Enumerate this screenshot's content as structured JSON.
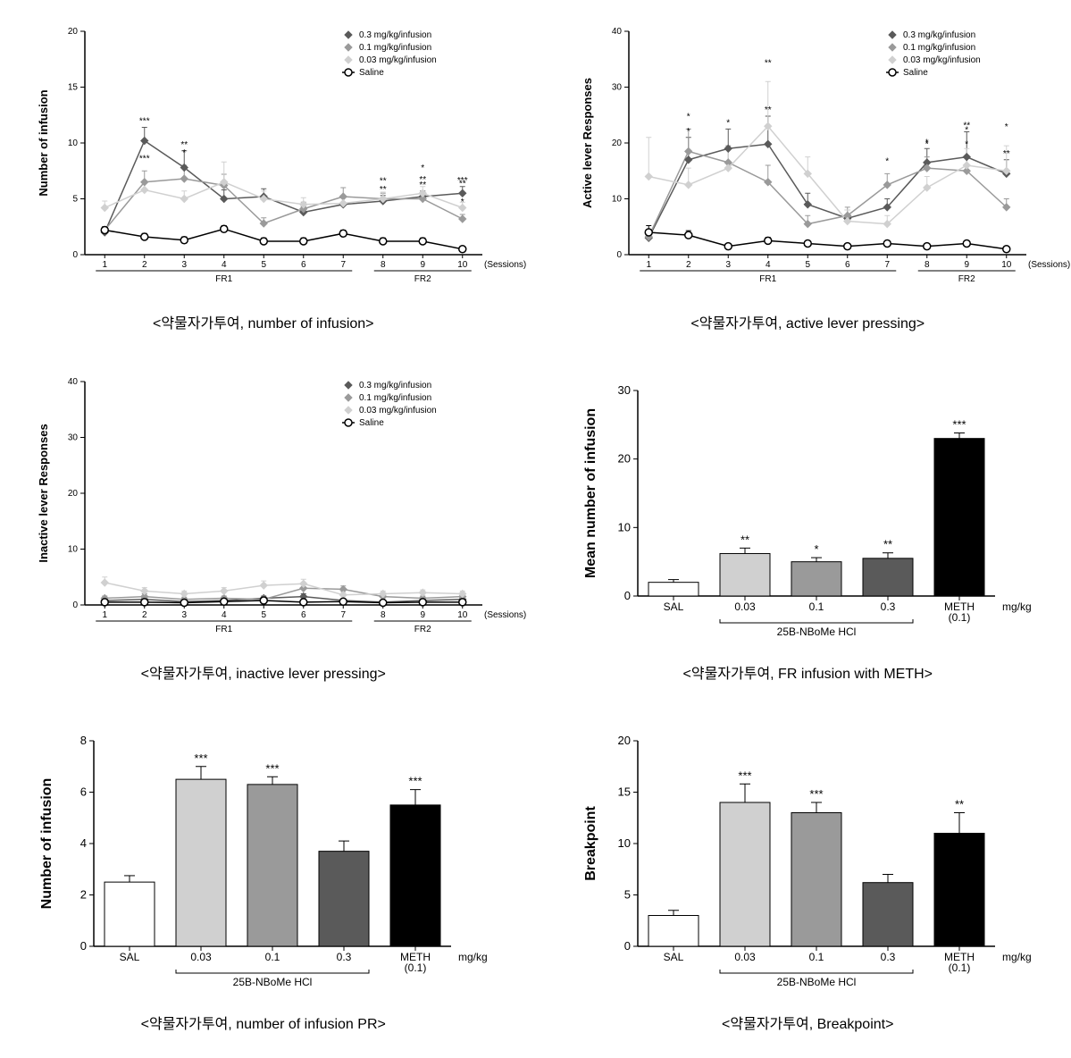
{
  "colors": {
    "dark": "#5a5a5a",
    "mid": "#9a9a9a",
    "light": "#d0d0d0",
    "saline_stroke": "#000000",
    "saline_fill": "#ffffff",
    "bg": "#ffffff",
    "black": "#000000"
  },
  "line_legends": {
    "items": [
      {
        "label": "0.3 mg/kg/infusion",
        "color": "#5a5a5a",
        "marker": "diamond"
      },
      {
        "label": "0.1 mg/kg/infusion",
        "color": "#9a9a9a",
        "marker": "diamond"
      },
      {
        "label": "0.03 mg/kg/infusion",
        "color": "#d0d0d0",
        "marker": "diamond"
      },
      {
        "label": "Saline",
        "color": "#000000",
        "marker": "open-circle"
      }
    ]
  },
  "charts": [
    {
      "id": "c1",
      "type": "line",
      "caption": "<약물자가투여, number of infusion>",
      "ylabel": "Number of infusion",
      "ylim": [
        0,
        20
      ],
      "ytick_step": 5,
      "x_categories": [
        1,
        2,
        3,
        4,
        5,
        6,
        7,
        8,
        9,
        10
      ],
      "x_groups": [
        {
          "label": "FR1",
          "from": 1,
          "to": 7
        },
        {
          "label": "FR2",
          "from": 8,
          "to": 10
        }
      ],
      "x_suffix_label": "(Sessions)",
      "series": [
        {
          "key": "0.3",
          "color": "#5a5a5a",
          "marker": "diamond",
          "y": [
            2.0,
            10.2,
            7.8,
            5.0,
            5.2,
            3.8,
            4.5,
            4.8,
            5.2,
            5.5
          ],
          "err": [
            0.4,
            1.2,
            1.5,
            0.8,
            0.7,
            0.5,
            0.6,
            0.5,
            0.5,
            0.6
          ],
          "sig": [
            "",
            "***",
            "**",
            "",
            "",
            "",
            "",
            "**",
            "**",
            "***"
          ]
        },
        {
          "key": "0.1",
          "color": "#9a9a9a",
          "marker": "diamond",
          "y": [
            2.2,
            6.5,
            6.8,
            6.2,
            2.8,
            4.1,
            5.2,
            5.0,
            5.0,
            3.2
          ],
          "err": [
            0.3,
            1.0,
            1.2,
            1.0,
            0.5,
            0.6,
            0.8,
            0.5,
            0.6,
            0.4
          ],
          "sig": [
            "",
            "***",
            "*",
            "",
            "",
            "",
            "",
            "**",
            "**",
            "*"
          ]
        },
        {
          "key": "0.03",
          "color": "#d0d0d0",
          "marker": "diamond",
          "y": [
            4.2,
            5.8,
            5.0,
            6.5,
            5.0,
            4.5,
            4.6,
            5.0,
            5.5,
            4.2
          ],
          "err": [
            0.6,
            0.8,
            0.7,
            1.8,
            0.7,
            0.6,
            0.5,
            0.6,
            0.6,
            0.5
          ],
          "sig": [
            "",
            "",
            "",
            "",
            "",
            "",
            "",
            "",
            "*",
            "**"
          ]
        },
        {
          "key": "Saline",
          "color": "#000000",
          "marker": "open-circle",
          "y": [
            2.2,
            1.6,
            1.3,
            2.3,
            1.2,
            1.2,
            1.9,
            1.2,
            1.2,
            0.5
          ],
          "err": [
            0.3,
            0.3,
            0.3,
            0.3,
            0.3,
            0.3,
            0.3,
            0.3,
            0.3,
            0.2
          ],
          "sig": [
            "",
            "",
            "",
            "",
            "",
            "",
            "",
            "",
            "",
            ""
          ]
        }
      ]
    },
    {
      "id": "c2",
      "type": "line",
      "caption": "<약물자가투여, active lever pressing>",
      "ylabel": "Active lever Responses",
      "ylim": [
        0,
        40
      ],
      "ytick_step": 10,
      "x_categories": [
        1,
        2,
        3,
        4,
        5,
        6,
        7,
        8,
        9,
        10
      ],
      "x_groups": [
        {
          "label": "FR1",
          "from": 1,
          "to": 7
        },
        {
          "label": "FR2",
          "from": 8,
          "to": 10
        }
      ],
      "x_suffix_label": "(Sessions)",
      "series": [
        {
          "key": "0.3",
          "color": "#5a5a5a",
          "marker": "diamond",
          "y": [
            3.0,
            17.0,
            19.0,
            19.8,
            9.0,
            6.5,
            8.5,
            16.5,
            17.5,
            14.5
          ],
          "err": [
            0.8,
            4.0,
            3.5,
            5.0,
            2.0,
            1.5,
            1.5,
            2.5,
            4.5,
            2.5
          ],
          "sig": [
            "",
            "*",
            "*",
            "**",
            "",
            "",
            "",
            "*",
            "**",
            "**"
          ]
        },
        {
          "key": "0.1",
          "color": "#9a9a9a",
          "marker": "diamond",
          "y": [
            3.2,
            18.5,
            16.5,
            13.0,
            5.5,
            7.0,
            12.5,
            15.5,
            15.0,
            8.5
          ],
          "err": [
            0.8,
            4.0,
            3.0,
            3.0,
            1.5,
            1.5,
            2.0,
            2.0,
            2.5,
            1.5
          ],
          "sig": [
            "",
            "*",
            "",
            "",
            "",
            "",
            "*",
            "*",
            "*",
            ""
          ]
        },
        {
          "key": "0.03",
          "color": "#d0d0d0",
          "marker": "diamond",
          "y": [
            14.0,
            12.5,
            15.5,
            23.0,
            14.5,
            6.0,
            5.5,
            12.0,
            16.0,
            15.0
          ],
          "err": [
            7.0,
            3.0,
            3.5,
            8.0,
            3.0,
            2.0,
            1.5,
            2.0,
            3.0,
            4.5
          ],
          "sig": [
            "",
            "",
            "",
            "**",
            "",
            "",
            "",
            "",
            "*",
            "*"
          ]
        },
        {
          "key": "Saline",
          "color": "#000000",
          "marker": "open-circle",
          "y": [
            4.0,
            3.5,
            1.5,
            2.5,
            2.0,
            1.5,
            2.0,
            1.5,
            2.0,
            1.0
          ],
          "err": [
            1.2,
            0.8,
            0.5,
            0.6,
            0.5,
            0.5,
            0.5,
            0.5,
            0.5,
            0.4
          ],
          "sig": [
            "",
            "",
            "",
            "",
            "",
            "",
            "",
            "",
            "",
            ""
          ]
        }
      ]
    },
    {
      "id": "c3",
      "type": "line",
      "caption": "<약물자가투여, inactive lever pressing>",
      "ylabel": "Inactive lever Responses",
      "ylim": [
        0,
        40
      ],
      "ytick_step": 10,
      "x_categories": [
        1,
        2,
        3,
        4,
        5,
        6,
        7,
        8,
        9,
        10
      ],
      "x_groups": [
        {
          "label": "FR1",
          "from": 1,
          "to": 7
        },
        {
          "label": "FR2",
          "from": 8,
          "to": 10
        }
      ],
      "x_suffix_label": "(Sessions)",
      "series": [
        {
          "key": "0.3",
          "color": "#5a5a5a",
          "marker": "diamond",
          "y": [
            0.8,
            1.0,
            0.6,
            0.8,
            1.2,
            1.5,
            0.8,
            0.5,
            0.8,
            1.0
          ],
          "err": [
            0.3,
            0.3,
            0.3,
            0.3,
            0.4,
            0.5,
            0.3,
            0.3,
            0.3,
            0.3
          ],
          "sig": [
            "",
            "",
            "",
            "",
            "",
            "",
            "",
            "",
            "",
            ""
          ]
        },
        {
          "key": "0.1",
          "color": "#9a9a9a",
          "marker": "diamond",
          "y": [
            1.2,
            1.5,
            1.0,
            1.2,
            1.0,
            3.0,
            2.8,
            1.5,
            1.2,
            1.5
          ],
          "err": [
            0.4,
            0.5,
            0.4,
            0.4,
            0.4,
            0.8,
            0.6,
            0.4,
            0.4,
            0.4
          ],
          "sig": [
            "",
            "",
            "",
            "",
            "",
            "",
            "",
            "",
            "",
            ""
          ]
        },
        {
          "key": "0.03",
          "color": "#d0d0d0",
          "marker": "diamond",
          "y": [
            4.0,
            2.5,
            2.0,
            2.5,
            3.5,
            3.8,
            1.8,
            2.0,
            2.2,
            2.0
          ],
          "err": [
            1.0,
            0.6,
            0.5,
            0.6,
            0.8,
            0.8,
            0.5,
            0.5,
            0.5,
            0.5
          ],
          "sig": [
            "",
            "",
            "",
            "",
            "",
            "",
            "",
            "",
            "",
            ""
          ]
        },
        {
          "key": "Saline",
          "color": "#000000",
          "marker": "open-circle",
          "y": [
            0.5,
            0.5,
            0.4,
            0.6,
            0.8,
            0.5,
            0.6,
            0.4,
            0.5,
            0.5
          ],
          "err": [
            0.2,
            0.2,
            0.2,
            0.2,
            0.2,
            0.2,
            0.2,
            0.2,
            0.2,
            0.2
          ],
          "sig": [
            "",
            "",
            "",
            "",
            "",
            "",
            "",
            "",
            "",
            ""
          ]
        }
      ]
    },
    {
      "id": "c4",
      "type": "bar",
      "caption": "<약물자가투여, FR infusion with METH>",
      "ylabel": "Mean number of infusion",
      "ylim": [
        0,
        30
      ],
      "ytick_step": 10,
      "axis_title_fontsize": 16,
      "x_categories": [
        "SAL",
        "0.03",
        "0.1",
        "0.3",
        "METH\n(0.1)"
      ],
      "x_right_label": "mg/kg",
      "x_group_bracket": {
        "label": "25B-NBoMe HCl",
        "from": 1,
        "to": 3
      },
      "bars": [
        {
          "fill": "#ffffff",
          "y": 2.0,
          "err": 0.4,
          "sig": ""
        },
        {
          "fill": "#d0d0d0",
          "y": 6.2,
          "err": 0.8,
          "sig": "**"
        },
        {
          "fill": "#9a9a9a",
          "y": 5.0,
          "err": 0.6,
          "sig": "*"
        },
        {
          "fill": "#5a5a5a",
          "y": 5.5,
          "err": 0.8,
          "sig": "**"
        },
        {
          "fill": "#000000",
          "y": 23.0,
          "err": 0.8,
          "sig": "***"
        }
      ]
    },
    {
      "id": "c5",
      "type": "bar",
      "caption": "<약물자가투여, number of infusion PR>",
      "ylabel": "Number of infusion",
      "ylim": [
        0,
        8
      ],
      "ytick_step": 2,
      "axis_title_fontsize": 16,
      "x_categories": [
        "SAL",
        "0.03",
        "0.1",
        "0.3",
        "METH\n(0.1)"
      ],
      "x_right_label": "mg/kg",
      "x_group_bracket": {
        "label": "25B-NBoMe HCl",
        "from": 1,
        "to": 3
      },
      "bars": [
        {
          "fill": "#ffffff",
          "y": 2.5,
          "err": 0.25,
          "sig": ""
        },
        {
          "fill": "#d0d0d0",
          "y": 6.5,
          "err": 0.5,
          "sig": "***"
        },
        {
          "fill": "#9a9a9a",
          "y": 6.3,
          "err": 0.3,
          "sig": "***"
        },
        {
          "fill": "#5a5a5a",
          "y": 3.7,
          "err": 0.4,
          "sig": ""
        },
        {
          "fill": "#000000",
          "y": 5.5,
          "err": 0.6,
          "sig": "***"
        }
      ]
    },
    {
      "id": "c6",
      "type": "bar",
      "caption": "<약물자가투여, Breakpoint>",
      "ylabel": "Breakpoint",
      "ylim": [
        0,
        20
      ],
      "ytick_step": 5,
      "axis_title_fontsize": 16,
      "x_categories": [
        "SAL",
        "0.03",
        "0.1",
        "0.3",
        "METH\n(0.1)"
      ],
      "x_right_label": "mg/kg",
      "x_group_bracket": {
        "label": "25B-NBoMe HCl",
        "from": 1,
        "to": 3
      },
      "bars": [
        {
          "fill": "#ffffff",
          "y": 3.0,
          "err": 0.5,
          "sig": ""
        },
        {
          "fill": "#d0d0d0",
          "y": 14.0,
          "err": 1.8,
          "sig": "***"
        },
        {
          "fill": "#9a9a9a",
          "y": 13.0,
          "err": 1.0,
          "sig": "***"
        },
        {
          "fill": "#5a5a5a",
          "y": 6.2,
          "err": 0.8,
          "sig": ""
        },
        {
          "fill": "#000000",
          "y": 11.0,
          "err": 2.0,
          "sig": "**"
        }
      ]
    }
  ]
}
